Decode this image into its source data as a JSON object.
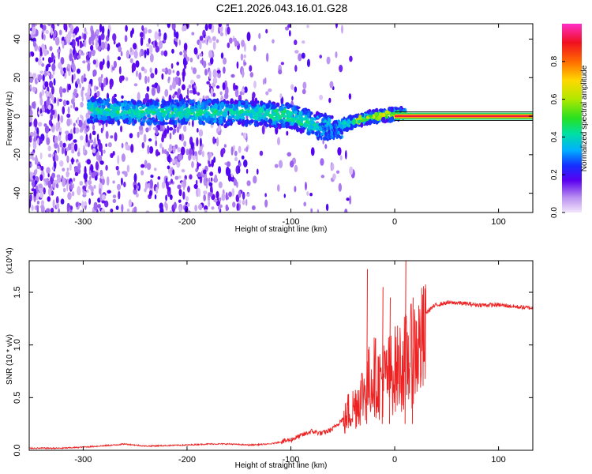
{
  "chart_data": [
    {
      "type": "heatmap",
      "title": "C2E1.2026.043.16.01.G28",
      "xlabel": "Height of straight line (km)",
      "ylabel": "Frequency (Hz)",
      "xlim": [
        -352,
        133
      ],
      "ylim": [
        -50,
        48
      ],
      "xticks": [
        -300,
        -200,
        -100,
        0,
        100
      ],
      "yticks": [
        -40,
        -20,
        0,
        20,
        40
      ],
      "colorbar": {
        "label": "Normalized spectral amplitude",
        "range": [
          0,
          1
        ],
        "ticks": [
          "0.0",
          "0.2",
          "0.4",
          "0.6",
          "0.8"
        ],
        "tick_values": [
          0,
          0.2,
          0.4,
          0.6,
          0.8
        ]
      },
      "features": {
        "dense_noise_region_km": [
          -352,
          -140
        ],
        "signal_band_start_km": -295,
        "signal_band_center_track": [
          [
            -290,
            3
          ],
          [
            -250,
            2
          ],
          [
            -200,
            2
          ],
          [
            -150,
            2
          ],
          [
            -120,
            1
          ],
          [
            -100,
            0
          ],
          [
            -80,
            -4
          ],
          [
            -60,
            -6
          ],
          [
            -40,
            -3
          ],
          [
            -20,
            0
          ],
          [
            0,
            1
          ],
          [
            133,
            0
          ]
        ],
        "stable_signal_start_km": 0
      }
    },
    {
      "type": "line",
      "title": "",
      "xlabel": "Height of straight line (km)",
      "ylabel": "SNR (10 * v/v)",
      "y_multiplier": "(x10^4)",
      "xlim": [
        -352,
        133
      ],
      "ylim": [
        0,
        1.8
      ],
      "xticks": [
        -300,
        -200,
        -100,
        0,
        100
      ],
      "yticks": [
        "0.0",
        "0.5",
        "1.0",
        "1.5"
      ],
      "ytick_values": [
        0,
        0.5,
        1.0,
        1.5
      ],
      "series": [
        {
          "name": "SNR",
          "color": "#ee2222",
          "points": [
            [
              -352,
              0.02
            ],
            [
              -320,
              0.02
            ],
            [
              -300,
              0.03
            ],
            [
              -270,
              0.05
            ],
            [
              -260,
              0.06
            ],
            [
              -240,
              0.04
            ],
            [
              -200,
              0.05
            ],
            [
              -180,
              0.06
            ],
            [
              -160,
              0.06
            ],
            [
              -140,
              0.05
            ],
            [
              -120,
              0.06
            ],
            [
              -100,
              0.1
            ],
            [
              -90,
              0.14
            ],
            [
              -80,
              0.18
            ],
            [
              -70,
              0.16
            ],
            [
              -60,
              0.2
            ],
            [
              -50,
              0.3
            ],
            [
              -45,
              0.45
            ],
            [
              -40,
              0.5
            ],
            [
              -35,
              0.6
            ],
            [
              -30,
              0.7
            ],
            [
              -25,
              0.8
            ],
            [
              -20,
              0.9
            ],
            [
              -15,
              0.8
            ],
            [
              -10,
              0.85
            ],
            [
              -5,
              0.9
            ],
            [
              0,
              0.95
            ],
            [
              5,
              1.0
            ],
            [
              10,
              1.05
            ],
            [
              15,
              1.1
            ],
            [
              20,
              1.2
            ],
            [
              25,
              1.25
            ],
            [
              30,
              1.3
            ],
            [
              35,
              1.35
            ],
            [
              40,
              1.38
            ],
            [
              50,
              1.4
            ],
            [
              60,
              1.4
            ],
            [
              70,
              1.39
            ],
            [
              80,
              1.38
            ],
            [
              90,
              1.38
            ],
            [
              100,
              1.38
            ],
            [
              110,
              1.37
            ],
            [
              120,
              1.36
            ],
            [
              133,
              1.35
            ]
          ],
          "spikes": [
            [
              -27,
              1.72
            ],
            [
              -12,
              1.55
            ],
            [
              -5,
              1.45
            ],
            [
              10,
              1.8
            ],
            [
              17,
              1.45
            ]
          ]
        }
      ]
    }
  ]
}
